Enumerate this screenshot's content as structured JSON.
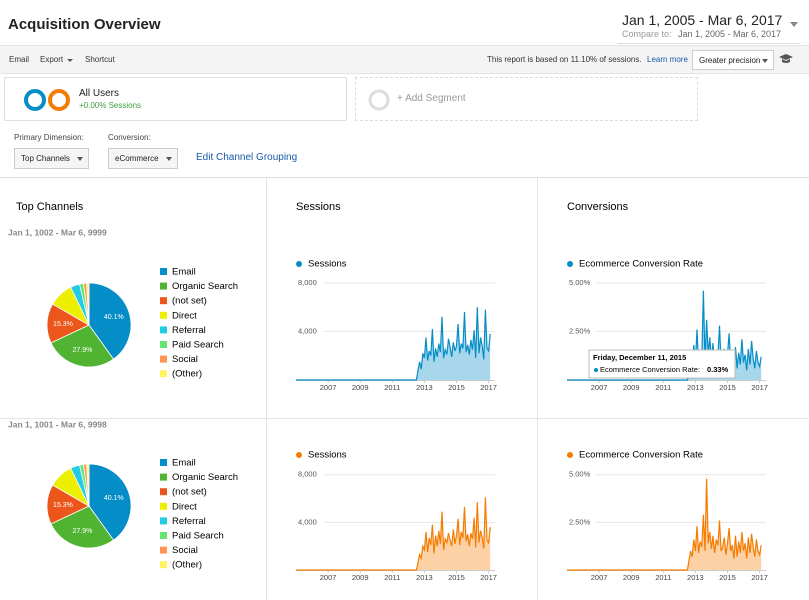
{
  "header": {
    "title": "Acquisition Overview",
    "date_range": "Jan 1, 2005 - Mar 6, 2017",
    "compare_label": "Compare to:",
    "compare_range": "Jan 1, 2005 - Mar 6, 2017"
  },
  "toolbar": {
    "buttons": [
      "Email",
      "Export",
      "Shortcut"
    ],
    "sampling_note": "This report is based on 11.10% of sessions.",
    "learn_more": "Learn more",
    "precision": "Greater precision"
  },
  "segments": [
    {
      "name": "All Users",
      "detail": "+0.00% Sessions"
    }
  ],
  "add_segment": "+ Add Segment",
  "dimensions": {
    "primary_label": "Primary Dimension:",
    "primary_value": "Top Channels",
    "conversion_label": "Conversion:",
    "conversion_value": "eCommerce",
    "edit_link": "Edit Channel Grouping"
  },
  "column_titles": [
    "Top Channels",
    "Sessions",
    "Conversions"
  ],
  "rows": [
    {
      "date_range": "Jan 1, 1002 - Mar 6, 9999",
      "pie": {
        "type": "pie",
        "categories": [
          "Email",
          "Organic Search",
          "(not set)",
          "Direct",
          "Referral",
          "Paid Search",
          "Social",
          "(Other)"
        ],
        "values": [
          40.1,
          27.9,
          15.3,
          9.5,
          3.6,
          1.5,
          1.2,
          0.9
        ],
        "value_labels": [
          "40.1%",
          "27.9%",
          "15.3%",
          null,
          null,
          null,
          null,
          null
        ],
        "colors": [
          "#058dc7",
          "#50b432",
          "#ed561b",
          "#edef00",
          "#24cbe5",
          "#64e572",
          "#ff9655",
          "#fff263"
        ]
      },
      "sessions": {
        "type": "line",
        "x": [
          2005,
          2012.5,
          2012.6,
          2012.7,
          2012.8,
          2012.9,
          2013,
          2013.1,
          2013.2,
          2013.3,
          2013.4,
          2013.5,
          2013.6,
          2013.7,
          2013.8,
          2013.9,
          2014,
          2014.1,
          2014.2,
          2014.3,
          2014.4,
          2014.5,
          2014.6,
          2014.7,
          2014.8,
          2014.9,
          2015,
          2015.1,
          2015.2,
          2015.3,
          2015.4,
          2015.5,
          2015.6,
          2015.7,
          2015.8,
          2015.9,
          2016,
          2016.1,
          2016.2,
          2016.3,
          2016.4,
          2016.5,
          2016.6,
          2016.7,
          2016.8,
          2016.9,
          2017,
          2017.1
        ],
        "xlim": [
          2005,
          2017.4
        ],
        "xticks": [
          2007,
          2009,
          2011,
          2013,
          2015,
          2017
        ],
        "ylim": [
          0,
          8400
        ],
        "yticks": [
          {
            "value": 4000,
            "label": "4,000"
          },
          {
            "value": 8000,
            "label": "8,000"
          }
        ],
        "series": [
          {
            "name": "Sessions",
            "color": "#058dc7",
            "values": [
              0,
              0,
              800,
              1500,
              900,
              2200,
              1800,
              3500,
              1600,
              2400,
              2000,
              4200,
              1500,
              2600,
              1900,
              3000,
              2300,
              5200,
              1800,
              2500,
              2100,
              3400,
              2700,
              1900,
              3100,
              2400,
              2800,
              4600,
              2200,
              3000,
              2600,
              5600,
              2300,
              2900,
              2100,
              3300,
              2500,
              4100,
              1800,
              6000,
              2200,
              3500,
              2800,
              1700,
              5800,
              2600,
              2400,
              3800
            ]
          }
        ]
      },
      "conversions": {
        "type": "line",
        "x": [
          2005,
          2012.5,
          2012.6,
          2012.7,
          2012.8,
          2012.9,
          2013,
          2013.1,
          2013.2,
          2013.3,
          2013.4,
          2013.5,
          2013.6,
          2013.7,
          2013.8,
          2013.9,
          2014,
          2014.1,
          2014.2,
          2014.3,
          2014.4,
          2014.5,
          2014.6,
          2014.7,
          2014.8,
          2014.9,
          2015,
          2015.1,
          2015.2,
          2015.3,
          2015.4,
          2015.5,
          2015.6,
          2015.7,
          2015.8,
          2015.9,
          2016,
          2016.1,
          2016.2,
          2016.3,
          2016.4,
          2016.5,
          2016.6,
          2016.7,
          2016.8,
          2016.9,
          2017,
          2017.1
        ],
        "xlim": [
          2005,
          2017.4
        ],
        "xticks": [
          2007,
          2009,
          2011,
          2013,
          2015,
          2017
        ],
        "ylim": [
          0,
          5.25
        ],
        "yticks": [
          {
            "value": 2.5,
            "label": "2.50%"
          },
          {
            "value": 5,
            "label": "5.00%"
          }
        ],
        "series": [
          {
            "name": "Ecommerce Conversion Rate",
            "color": "#058dc7",
            "values": [
              0,
              0,
              0.4,
              1.2,
              0.6,
              1.8,
              0.9,
              2.6,
              0.8,
              1.4,
              1.1,
              4.6,
              0.9,
              3.1,
              1.3,
              2.2,
              1.0,
              1.9,
              0.8,
              1.5,
              1.2,
              2.8,
              0.9,
              1.1,
              1.6,
              0.7,
              1.3,
              2.4,
              0.9,
              1.2,
              0.33,
              1.7,
              0.6,
              1.4,
              0.8,
              2.1,
              0.9,
              1.3,
              0.5,
              1.6,
              0.8,
              2.0,
              1.1,
              0.6,
              1.5,
              0.9,
              0.7,
              1.2
            ]
          }
        ],
        "tooltip": {
          "title": "Friday, December 11, 2015",
          "series": "Ecommerce Conversion Rate:",
          "value_label": "0.33%"
        }
      }
    },
    {
      "date_range": "Jan 1, 1001 - Mar 6, 9998",
      "pie": {
        "type": "pie",
        "categories": [
          "Email",
          "Organic Search",
          "(not set)",
          "Direct",
          "Referral",
          "Paid Search",
          "Social",
          "(Other)"
        ],
        "values": [
          40.1,
          27.9,
          15.3,
          9.5,
          3.6,
          1.5,
          1.2,
          0.9
        ],
        "value_labels": [
          "40.1%",
          "27.9%",
          "15.3%",
          null,
          null,
          null,
          null,
          null
        ],
        "colors": [
          "#058dc7",
          "#50b432",
          "#ed561b",
          "#edef00",
          "#24cbe5",
          "#64e572",
          "#ff9655",
          "#fff263"
        ]
      },
      "sessions": {
        "type": "line",
        "x": [
          2005,
          2012.5,
          2012.6,
          2012.7,
          2012.8,
          2012.9,
          2013,
          2013.1,
          2013.2,
          2013.3,
          2013.4,
          2013.5,
          2013.6,
          2013.7,
          2013.8,
          2013.9,
          2014,
          2014.1,
          2014.2,
          2014.3,
          2014.4,
          2014.5,
          2014.6,
          2014.7,
          2014.8,
          2014.9,
          2015,
          2015.1,
          2015.2,
          2015.3,
          2015.4,
          2015.5,
          2015.6,
          2015.7,
          2015.8,
          2015.9,
          2016,
          2016.1,
          2016.2,
          2016.3,
          2016.4,
          2016.5,
          2016.6,
          2016.7,
          2016.8,
          2016.9,
          2017,
          2017.1
        ],
        "xlim": [
          2005,
          2017.4
        ],
        "xticks": [
          2007,
          2009,
          2011,
          2013,
          2015,
          2017
        ],
        "ylim": [
          0,
          8400
        ],
        "yticks": [
          {
            "value": 4000,
            "label": "4,000"
          },
          {
            "value": 8000,
            "label": "8,000"
          }
        ],
        "series": [
          {
            "name": "Sessions",
            "color": "#f57c00",
            "values": [
              0,
              0,
              600,
              1300,
              1000,
              2000,
              1700,
              3200,
              1500,
              2700,
              2100,
              3800,
              1400,
              2900,
              2000,
              3300,
              2200,
              4900,
              1700,
              2600,
              2300,
              3100,
              2500,
              2000,
              3400,
              2200,
              2900,
              4300,
              2100,
              3200,
              2700,
              5300,
              2400,
              3000,
              2000,
              3100,
              2600,
              4400,
              1900,
              5700,
              2300,
              3300,
              2700,
              1800,
              6100,
              2500,
              2300,
              3600
            ]
          }
        ]
      },
      "conversions": {
        "type": "line",
        "x": [
          2005,
          2012.5,
          2012.6,
          2012.7,
          2012.8,
          2012.9,
          2013,
          2013.1,
          2013.2,
          2013.3,
          2013.4,
          2013.5,
          2013.6,
          2013.7,
          2013.8,
          2013.9,
          2014,
          2014.1,
          2014.2,
          2014.3,
          2014.4,
          2014.5,
          2014.6,
          2014.7,
          2014.8,
          2014.9,
          2015,
          2015.1,
          2015.2,
          2015.3,
          2015.4,
          2015.5,
          2015.6,
          2015.7,
          2015.8,
          2015.9,
          2016,
          2016.1,
          2016.2,
          2016.3,
          2016.4,
          2016.5,
          2016.6,
          2016.7,
          2016.8,
          2016.9,
          2017,
          2017.1
        ],
        "xlim": [
          2005,
          2017.4
        ],
        "xticks": [
          2007,
          2009,
          2011,
          2013,
          2015,
          2017
        ],
        "ylim": [
          0,
          5.25
        ],
        "yticks": [
          {
            "value": 2.5,
            "label": "2.50%"
          },
          {
            "value": 5,
            "label": "5.00%"
          }
        ],
        "series": [
          {
            "name": "Ecommerce Conversion Rate",
            "color": "#f57c00",
            "values": [
              0,
              0,
              0.5,
              1.0,
              0.7,
              1.6,
              1.0,
              2.3,
              0.9,
              1.5,
              1.2,
              2.9,
              1.0,
              4.8,
              1.4,
              2.0,
              1.1,
              1.8,
              0.9,
              1.6,
              1.3,
              2.6,
              1.0,
              1.2,
              1.7,
              0.8,
              1.4,
              2.2,
              1.0,
              1.3,
              0.6,
              1.8,
              0.7,
              1.5,
              0.9,
              2.0,
              1.0,
              1.4,
              0.6,
              1.7,
              0.9,
              1.9,
              1.2,
              0.7,
              1.6,
              1.0,
              0.8,
              1.3
            ]
          }
        ]
      }
    }
  ]
}
